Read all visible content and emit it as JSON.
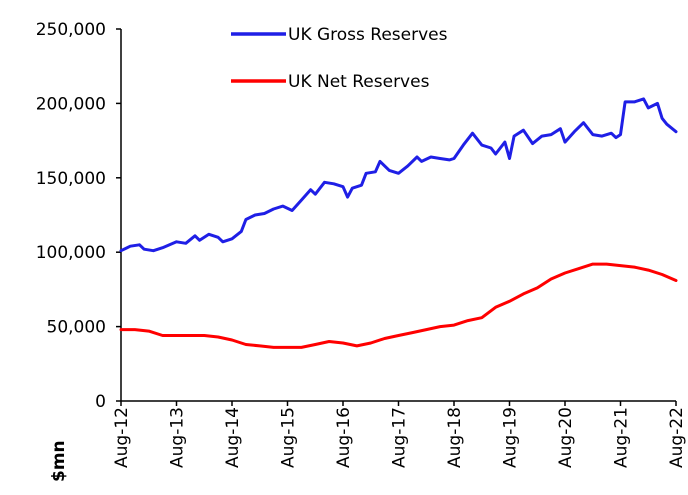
{
  "chart_data": {
    "type": "line",
    "ylabel": "$mn",
    "ylim": [
      0,
      250000
    ],
    "yticks": [
      0,
      50000,
      100000,
      150000,
      200000,
      250000
    ],
    "ytick_labels": [
      "0",
      "50,000",
      "100,000",
      "150,000",
      "200,000",
      "250,000"
    ],
    "xlim": [
      "2012-08",
      "2022-08"
    ],
    "xticks": [
      "2012-08",
      "2013-08",
      "2014-08",
      "2015-08",
      "2016-08",
      "2017-08",
      "2018-08",
      "2019-08",
      "2020-08",
      "2021-08",
      "2022-08"
    ],
    "xtick_labels": [
      "Aug-12",
      "Aug-13",
      "Aug-14",
      "Aug-15",
      "Aug-16",
      "Aug-17",
      "Aug-18",
      "Aug-19",
      "Aug-20",
      "Aug-21",
      "Aug-22"
    ],
    "grid": false,
    "legend_position": "top-center",
    "series": [
      {
        "name": "UK Gross Reserves",
        "color": "#1f1fe6",
        "points": [
          [
            "2012-08",
            101000
          ],
          [
            "2012-10",
            104000
          ],
          [
            "2012-12",
            105000
          ],
          [
            "2013-01",
            102000
          ],
          [
            "2013-03",
            101000
          ],
          [
            "2013-05",
            103000
          ],
          [
            "2013-08",
            107000
          ],
          [
            "2013-10",
            106000
          ],
          [
            "2013-12",
            111000
          ],
          [
            "2014-01",
            108000
          ],
          [
            "2014-03",
            112000
          ],
          [
            "2014-05",
            110000
          ],
          [
            "2014-06",
            107000
          ],
          [
            "2014-08",
            109000
          ],
          [
            "2014-10",
            114000
          ],
          [
            "2014-11",
            122000
          ],
          [
            "2015-01",
            125000
          ],
          [
            "2015-03",
            126000
          ],
          [
            "2015-05",
            129000
          ],
          [
            "2015-07",
            131000
          ],
          [
            "2015-09",
            128000
          ],
          [
            "2015-11",
            135000
          ],
          [
            "2016-01",
            142000
          ],
          [
            "2016-02",
            139000
          ],
          [
            "2016-04",
            147000
          ],
          [
            "2016-06",
            146000
          ],
          [
            "2016-08",
            144000
          ],
          [
            "2016-09",
            137000
          ],
          [
            "2016-10",
            143000
          ],
          [
            "2016-12",
            145000
          ],
          [
            "2017-01",
            153000
          ],
          [
            "2017-03",
            154000
          ],
          [
            "2017-04",
            161000
          ],
          [
            "2017-06",
            155000
          ],
          [
            "2017-08",
            153000
          ],
          [
            "2017-10",
            158000
          ],
          [
            "2017-12",
            164000
          ],
          [
            "2018-01",
            161000
          ],
          [
            "2018-03",
            164000
          ],
          [
            "2018-05",
            163000
          ],
          [
            "2018-07",
            162000
          ],
          [
            "2018-08",
            163000
          ],
          [
            "2018-10",
            172000
          ],
          [
            "2018-12",
            180000
          ],
          [
            "2019-02",
            172000
          ],
          [
            "2019-04",
            170000
          ],
          [
            "2019-05",
            166000
          ],
          [
            "2019-07",
            174000
          ],
          [
            "2019-08",
            163000
          ],
          [
            "2019-09",
            178000
          ],
          [
            "2019-11",
            182000
          ],
          [
            "2020-01",
            173000
          ],
          [
            "2020-03",
            178000
          ],
          [
            "2020-05",
            179000
          ],
          [
            "2020-07",
            183000
          ],
          [
            "2020-08",
            174000
          ],
          [
            "2020-10",
            181000
          ],
          [
            "2020-12",
            187000
          ],
          [
            "2021-02",
            179000
          ],
          [
            "2021-04",
            178000
          ],
          [
            "2021-06",
            180000
          ],
          [
            "2021-07",
            177000
          ],
          [
            "2021-08",
            179000
          ],
          [
            "2021-09",
            201000
          ],
          [
            "2021-11",
            201000
          ],
          [
            "2022-01",
            203000
          ],
          [
            "2022-02",
            197000
          ],
          [
            "2022-04",
            200000
          ],
          [
            "2022-05",
            190000
          ],
          [
            "2022-06",
            186000
          ],
          [
            "2022-08",
            181000
          ]
        ]
      },
      {
        "name": "UK Net Reserves",
        "color": "#ff0000",
        "points": [
          [
            "2012-08",
            48000
          ],
          [
            "2012-11",
            48000
          ],
          [
            "2013-02",
            47000
          ],
          [
            "2013-05",
            44000
          ],
          [
            "2013-08",
            44000
          ],
          [
            "2013-11",
            44000
          ],
          [
            "2014-02",
            44000
          ],
          [
            "2014-05",
            43000
          ],
          [
            "2014-08",
            41000
          ],
          [
            "2014-11",
            38000
          ],
          [
            "2015-02",
            37000
          ],
          [
            "2015-05",
            36000
          ],
          [
            "2015-08",
            36000
          ],
          [
            "2015-11",
            36000
          ],
          [
            "2016-02",
            38000
          ],
          [
            "2016-05",
            40000
          ],
          [
            "2016-08",
            39000
          ],
          [
            "2016-11",
            37000
          ],
          [
            "2017-02",
            39000
          ],
          [
            "2017-05",
            42000
          ],
          [
            "2017-08",
            44000
          ],
          [
            "2017-11",
            46000
          ],
          [
            "2018-02",
            48000
          ],
          [
            "2018-05",
            50000
          ],
          [
            "2018-08",
            51000
          ],
          [
            "2018-11",
            54000
          ],
          [
            "2019-02",
            56000
          ],
          [
            "2019-05",
            63000
          ],
          [
            "2019-08",
            67000
          ],
          [
            "2019-11",
            72000
          ],
          [
            "2020-02",
            76000
          ],
          [
            "2020-05",
            82000
          ],
          [
            "2020-08",
            86000
          ],
          [
            "2020-11",
            89000
          ],
          [
            "2021-02",
            92000
          ],
          [
            "2021-05",
            92000
          ],
          [
            "2021-08",
            91000
          ],
          [
            "2021-11",
            90000
          ],
          [
            "2022-02",
            88000
          ],
          [
            "2022-05",
            85000
          ],
          [
            "2022-08",
            81000
          ]
        ]
      }
    ]
  }
}
